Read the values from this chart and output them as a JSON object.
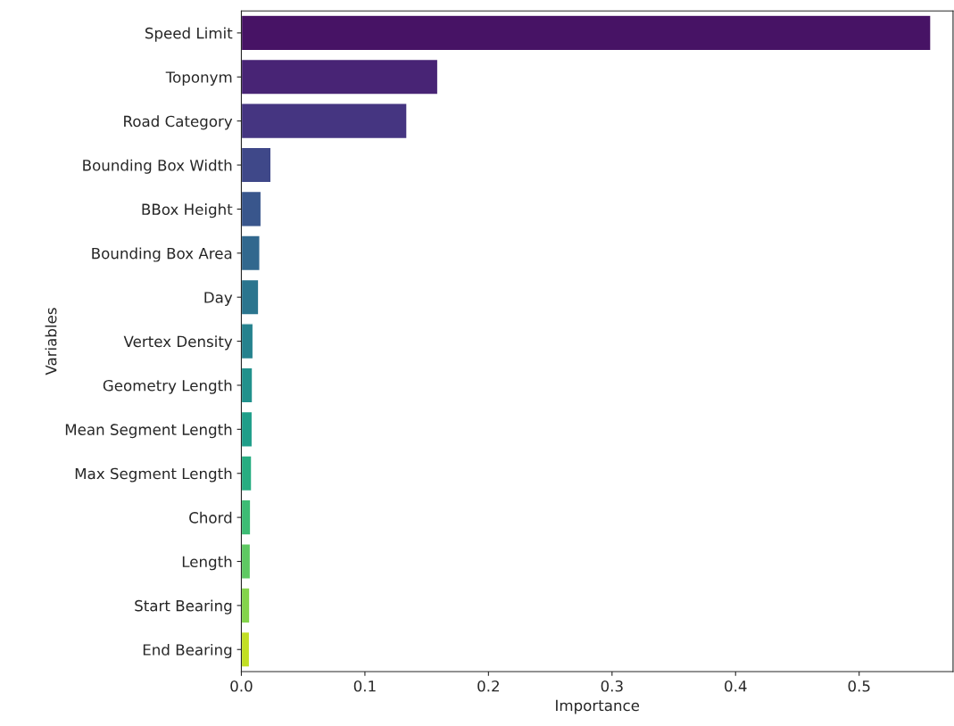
{
  "chart_data": {
    "type": "bar",
    "orientation": "horizontal",
    "xlabel": "Importance",
    "ylabel": "Variables",
    "categories": [
      "Speed Limit",
      "Toponym",
      "Road Category",
      "Bounding Box Width",
      "BBox Height",
      "Bounding Box Area",
      "Day",
      "Vertex Density",
      "Geometry Length",
      "Mean Segment Length",
      "Max Segment Length",
      "Chord",
      "Length",
      "Start Bearing",
      "End Bearing"
    ],
    "values": [
      0.558,
      0.159,
      0.134,
      0.024,
      0.016,
      0.015,
      0.014,
      0.0095,
      0.009,
      0.0088,
      0.0083,
      0.0075,
      0.0073,
      0.0068,
      0.0066
    ],
    "colors": [
      "#471365",
      "#482475",
      "#453581",
      "#3f4889",
      "#39568c",
      "#31688e",
      "#2b758e",
      "#26828e",
      "#21918c",
      "#1f9e89",
      "#27ad81",
      "#3dbc74",
      "#5ec962",
      "#84d44b",
      "#c2df23"
    ],
    "xlim": [
      0,
      0.576
    ],
    "xticks": [
      {
        "value": 0,
        "label": "0.0"
      },
      0.1,
      0.2,
      0.3,
      0.4,
      0.5
    ],
    "grid": false,
    "legend": false
  }
}
